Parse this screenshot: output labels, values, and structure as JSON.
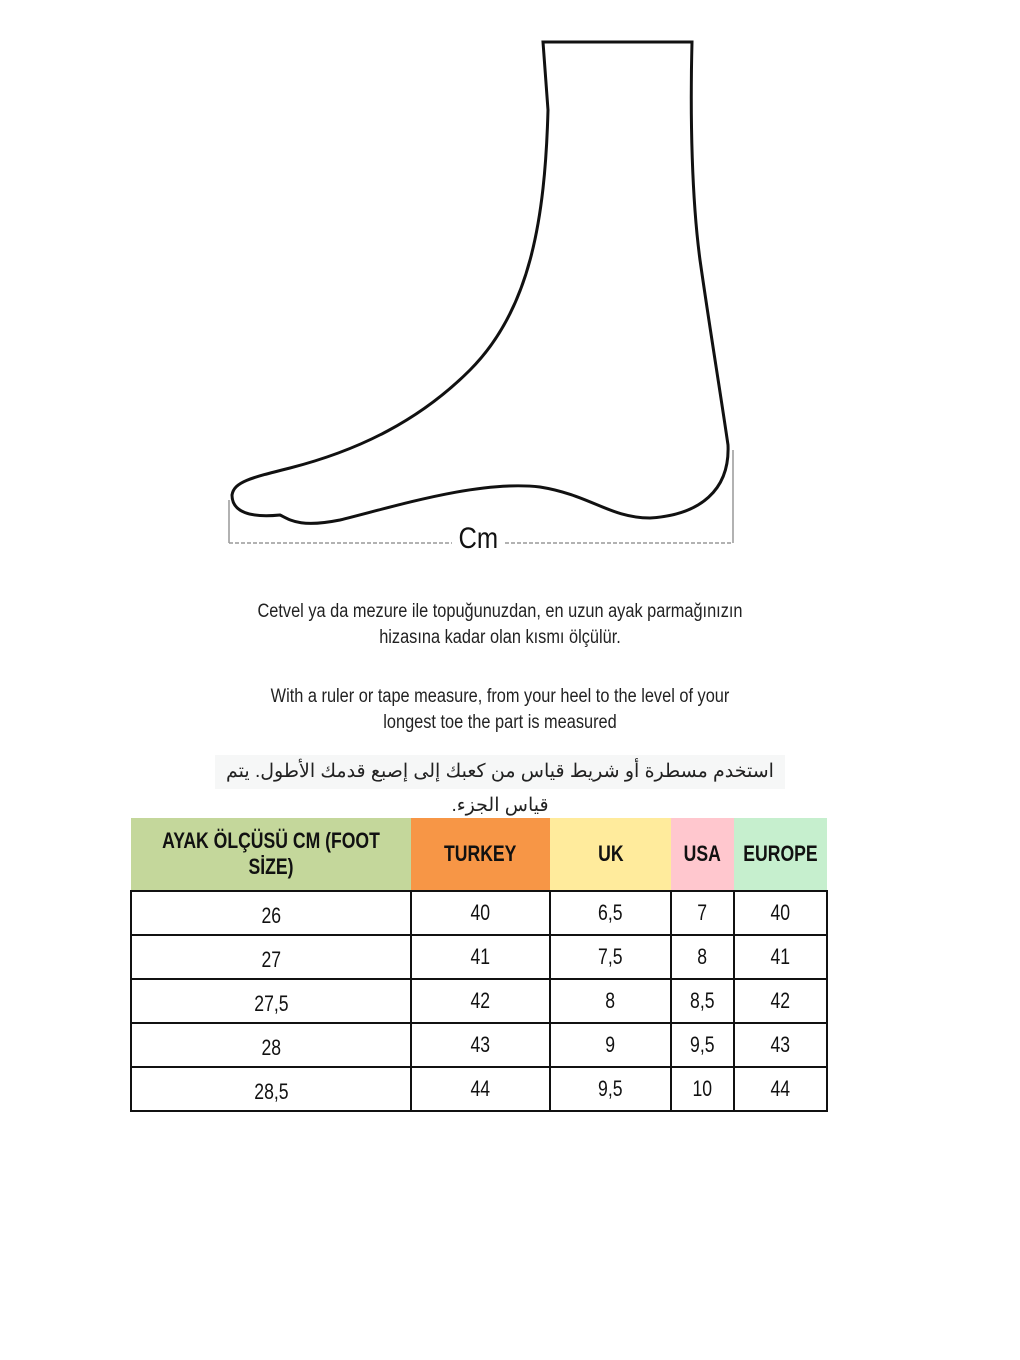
{
  "diagram": {
    "measure_label": "Cm"
  },
  "instructions": {
    "turkish": "Cetvel ya da mezure ile topuğunuzdan, en uzun ayak parmağınızın hizasına kadar olan kısmı ölçülür.",
    "english": "With a ruler or tape measure, from your heel to the level of your longest toe the part is measured",
    "arabic": "استخدم مسطرة أو شريط قياس من كعبك إلى إصبع قدمك الأطول. يتم قياس الجزء."
  },
  "table": {
    "headers": [
      {
        "label": "AYAK ÖLÇÜSÜ CM (FOOT SİZE)",
        "color": "#c4d79b"
      },
      {
        "label": "TURKEY",
        "color": "#f79646"
      },
      {
        "label": "UK",
        "color": "#ffeb9c"
      },
      {
        "label": "USA",
        "color": "#ffc7ce"
      },
      {
        "label": "EUROPE",
        "color": "#c6efce"
      }
    ],
    "rows": [
      [
        "26",
        "40",
        "6,5",
        "7",
        "40"
      ],
      [
        "27",
        "41",
        "7,5",
        "8",
        "41"
      ],
      [
        "27,5",
        "42",
        "8",
        "8,5",
        "42"
      ],
      [
        "28",
        "43",
        "9",
        "9,5",
        "43"
      ],
      [
        "28,5",
        "44",
        "9,5",
        "10",
        "44"
      ]
    ]
  }
}
